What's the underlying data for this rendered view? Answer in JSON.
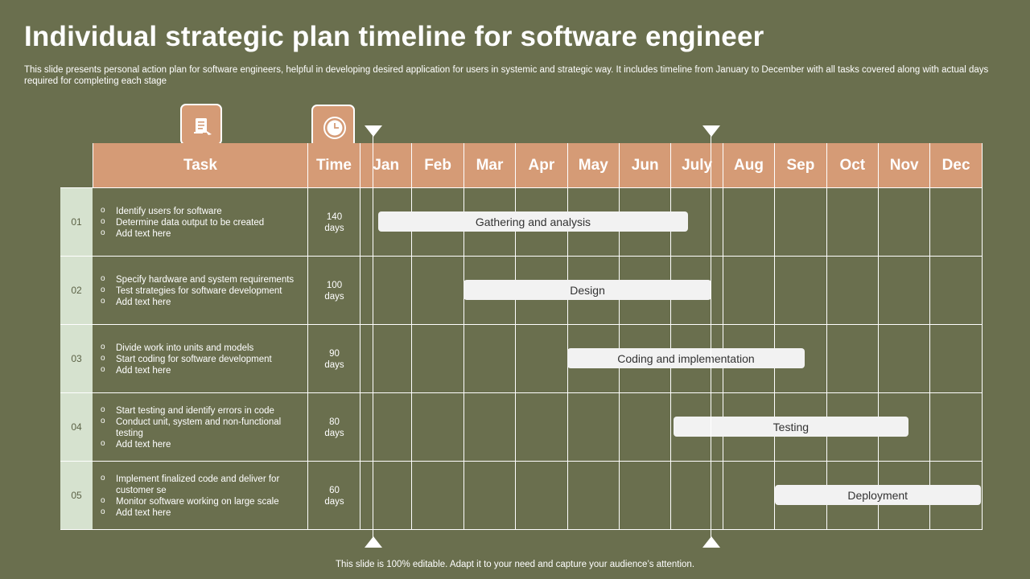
{
  "title": "Individual strategic plan timeline for software engineer",
  "subtitle": "This slide presents personal action plan for software engineers, helpful in developing desired application for users in systemic and strategic way. It includes timeline from January to December with all tasks covered along with actual days required for completing each stage",
  "icons": [
    "task-list-icon",
    "clock-icon"
  ],
  "colors": {
    "background": "#6a6f4e",
    "header": "#d59b76",
    "number_cell": "#d6e2cf",
    "bar": "#f2f2f2"
  },
  "header": {
    "task": "Task",
    "time": "Time",
    "months": [
      "Jan",
      "Feb",
      "Mar",
      "Apr",
      "May",
      "Jun",
      "July",
      "Aug",
      "Sep",
      "Oct",
      "Nov",
      "Dec"
    ]
  },
  "rows": [
    {
      "num": "01",
      "tasks": [
        "Identify users for software",
        "Determine data output to be created",
        "Add text here"
      ],
      "time_value": "140",
      "time_unit": "days",
      "bar": {
        "label": "Gathering and analysis",
        "start_month": 1.0,
        "end_month": 6.35
      }
    },
    {
      "num": "02",
      "tasks": [
        "Specify hardware and system requirements",
        "Test strategies for software development",
        "Add text here"
      ],
      "time_value": "100",
      "time_unit": "days",
      "bar": {
        "label": "Design",
        "start_month": 2.65,
        "end_month": 6.8
      }
    },
    {
      "num": "03",
      "tasks": [
        "Divide work into units and models",
        "Start coding for software development",
        "Add text here"
      ],
      "time_value": "90",
      "time_unit": "days",
      "bar": {
        "label": "Coding and implementation",
        "start_month": 4.65,
        "end_month": 8.6
      }
    },
    {
      "num": "04",
      "tasks": [
        "Start testing and identify errors in code",
        "Conduct unit, system and non-functional testing",
        "Add text here"
      ],
      "time_value": "80",
      "time_unit": "days",
      "bar": {
        "label": "Testing",
        "start_month": 6.7,
        "end_month": 10.6
      }
    },
    {
      "num": "05",
      "tasks": [
        "Implement finalized code and deliver for customer se",
        "Monitor software working on large scale",
        "Add text here"
      ],
      "time_value": "60",
      "time_unit": "days",
      "bar": {
        "label": "Deployment",
        "start_month": 8.65,
        "end_month": 12.0
      }
    }
  ],
  "footer": "This slide is 100% editable. Adapt it to your need and capture your audience’s attention."
}
